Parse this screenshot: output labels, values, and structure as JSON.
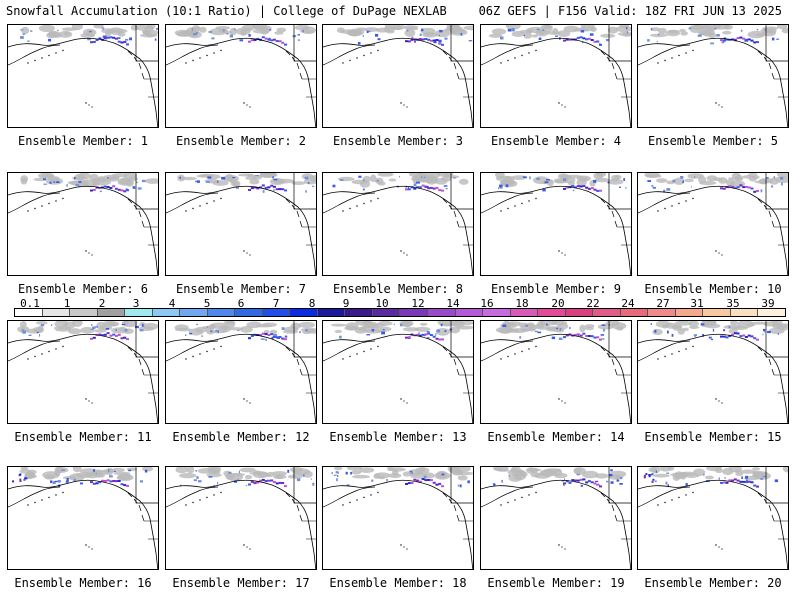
{
  "header": {
    "left": "Snowfall Accumulation (10:1 Ratio) | College of DuPage NEXLAB",
    "right": "06Z GEFS | F156 Valid: 18Z FRI JUN 13 2025"
  },
  "panels": [
    {
      "label": "Ensemble Member: 1"
    },
    {
      "label": "Ensemble Member: 2"
    },
    {
      "label": "Ensemble Member: 3"
    },
    {
      "label": "Ensemble Member: 4"
    },
    {
      "label": "Ensemble Member: 5"
    },
    {
      "label": "Ensemble Member: 6"
    },
    {
      "label": "Ensemble Member: 7"
    },
    {
      "label": "Ensemble Member: 8"
    },
    {
      "label": "Ensemble Member: 9"
    },
    {
      "label": "Ensemble Member: 10"
    },
    {
      "label": "Ensemble Member: 11"
    },
    {
      "label": "Ensemble Member: 12"
    },
    {
      "label": "Ensemble Member: 13"
    },
    {
      "label": "Ensemble Member: 14"
    },
    {
      "label": "Ensemble Member: 15"
    },
    {
      "label": "Ensemble Member: 16"
    },
    {
      "label": "Ensemble Member: 17"
    },
    {
      "label": "Ensemble Member: 18"
    },
    {
      "label": "Ensemble Member: 19"
    },
    {
      "label": "Ensemble Member: 20"
    }
  ],
  "colorbar": {
    "ticks": [
      "0.1",
      "1",
      "2",
      "3",
      "4",
      "5",
      "6",
      "7",
      "8",
      "9",
      "10",
      "12",
      "14",
      "16",
      "18",
      "20",
      "22",
      "24",
      "27",
      "31",
      "35",
      "39"
    ],
    "colors": [
      "#ffffff",
      "#e6e6e6",
      "#c8c8c8",
      "#a0a0a0",
      "#9ee8f0",
      "#8cc8f5",
      "#6fa8f0",
      "#4f88eb",
      "#2f6ae0",
      "#1f4fe8",
      "#0a2ce0",
      "#1a1a9a",
      "#3a1a8a",
      "#5a2aa0",
      "#7a3ab8",
      "#9a4ac8",
      "#b45ad6",
      "#c86ae0",
      "#d85ab8",
      "#e04a98",
      "#d84080",
      "#e05a8a",
      "#e86a7a",
      "#f08a8a",
      "#f5a88a",
      "#f8c8a0",
      "#fae0c0",
      "#fdf0dc"
    ]
  }
}
